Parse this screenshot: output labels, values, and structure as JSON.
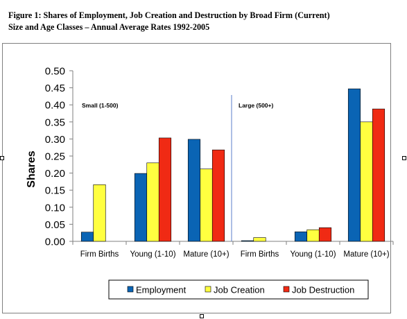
{
  "caption": {
    "line1": "Figure 1:  Shares of Employment, Job Creation and Destruction by Broad Firm (Current)",
    "line2": "Size and Age Classes – Annual Average Rates 1992-2005"
  },
  "chart_data": {
    "type": "bar",
    "title": "",
    "xlabel": "",
    "ylabel": "Shares",
    "ylim": [
      0,
      0.5
    ],
    "yticks": [
      "0.00",
      "0.05",
      "0.10",
      "0.15",
      "0.20",
      "0.25",
      "0.30",
      "0.35",
      "0.40",
      "0.45",
      "0.50"
    ],
    "grid": false,
    "legend_position": "bottom",
    "categories": [
      "Firm Births",
      "Young (1-10)",
      "Mature (10+)",
      "Firm Births",
      "Young (1-10)",
      "Mature (10+)"
    ],
    "panels": [
      {
        "label": "Small (1-500)",
        "categories": [
          0,
          1,
          2
        ]
      },
      {
        "label": "Large (500+)",
        "categories": [
          3,
          4,
          5
        ]
      }
    ],
    "series": [
      {
        "name": "Employment",
        "color": "#0a64b4",
        "values": [
          0.027,
          0.199,
          0.299,
          0.002,
          0.028,
          0.447
        ]
      },
      {
        "name": "Job Creation",
        "color": "#ffff40",
        "values": [
          0.166,
          0.23,
          0.212,
          0.011,
          0.034,
          0.35
        ]
      },
      {
        "name": "Job Destruction",
        "color": "#f02a14",
        "values": [
          0.0,
          0.303,
          0.268,
          0.0,
          0.04,
          0.388
        ]
      }
    ]
  }
}
